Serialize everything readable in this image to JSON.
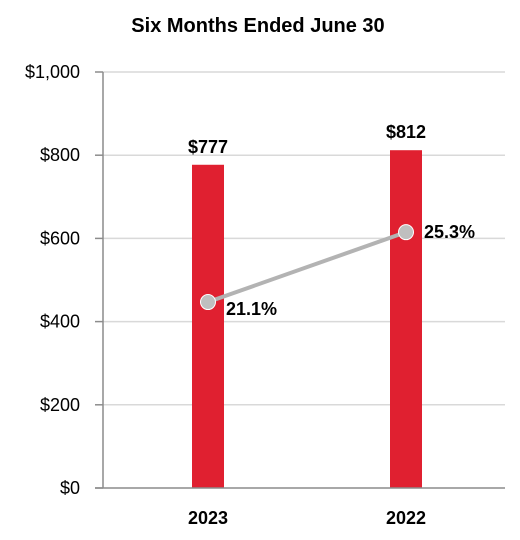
{
  "chart_data": {
    "type": "bar",
    "title": "Six Months Ended June 30",
    "categories": [
      "2023",
      "2022"
    ],
    "ylim": [
      0,
      1000
    ],
    "yticks": [
      0,
      200,
      400,
      600,
      800,
      1000
    ],
    "ytick_labels": [
      "$0",
      "$200",
      "$400",
      "$600",
      "$800",
      "$1,000"
    ],
    "grid": true,
    "series": [
      {
        "type": "bar",
        "values": [
          777,
          812
        ],
        "labels": [
          "$777",
          "$812"
        ],
        "color": "#e02030"
      },
      {
        "type": "line",
        "values": [
          21.1,
          25.3
        ],
        "plot_values": [
          447,
          615
        ],
        "labels": [
          "21.1%",
          "25.3%"
        ],
        "color": "#b3b3b3",
        "marker_color": "#bfbfbf"
      }
    ]
  }
}
